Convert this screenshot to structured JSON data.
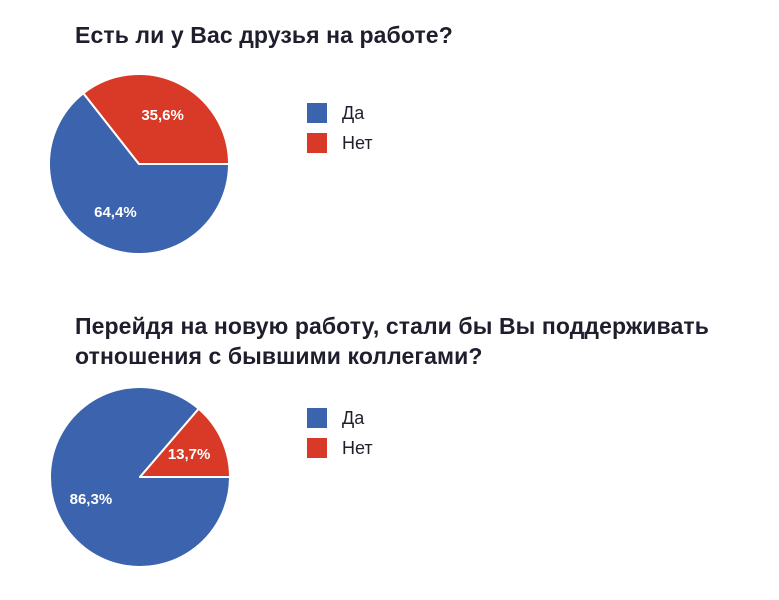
{
  "page": {
    "background_color": "#ffffff",
    "title_color": "#1e1e2d",
    "slice_label_color": "#ffffff"
  },
  "chart_data": [
    {
      "type": "pie",
      "title": "Есть ли у Вас друзья на работе?",
      "labels": [
        "Да",
        "Нет"
      ],
      "values": [
        64.4,
        35.6
      ],
      "value_labels": [
        "64,4%",
        "35,6%"
      ],
      "colors": [
        "#3c63ae",
        "#d93927"
      ],
      "legend_position": "right",
      "start_angle": "east",
      "direction": "clockwise"
    },
    {
      "type": "pie",
      "title": "Перейдя на новую работу, стали бы Вы поддерживать отношения с бывшими коллегами?",
      "labels": [
        "Да",
        "Нет"
      ],
      "values": [
        86.3,
        13.7
      ],
      "value_labels": [
        "86,3%",
        "13,7%"
      ],
      "colors": [
        "#3c63ae",
        "#d93927"
      ],
      "legend_position": "right",
      "start_angle": "east",
      "direction": "clockwise"
    }
  ]
}
